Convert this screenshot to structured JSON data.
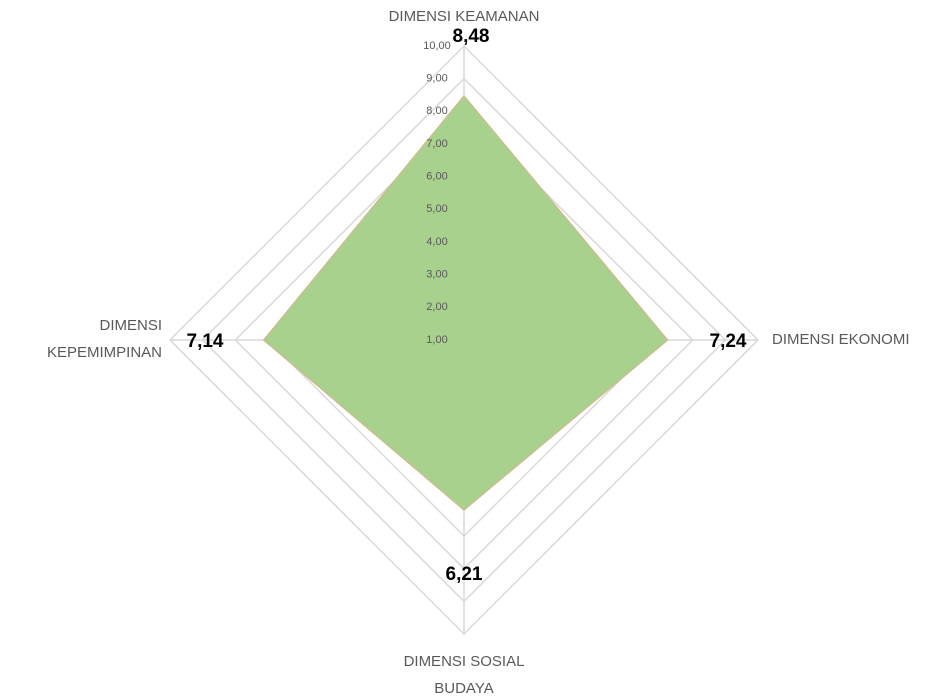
{
  "chart_data": {
    "type": "radar",
    "categories": [
      "DIMENSI KEAMANAN",
      "DIMENSI EKONOMI",
      "DIMENSI SOSIAL BUDAYA",
      "DIMENSI KEPEMIMPINAN"
    ],
    "values": [
      8.48,
      7.24,
      6.21,
      7.14
    ],
    "value_labels": [
      "8,48",
      "7,24",
      "6,21",
      "7,14"
    ],
    "color": "#a9d18e",
    "ylim": [
      1,
      10
    ],
    "yticks": [
      {
        "value": 1,
        "label": "1,00"
      },
      {
        "value": 2,
        "label": "2,00"
      },
      {
        "value": 3,
        "label": "3,00"
      },
      {
        "value": 4,
        "label": "4,00"
      },
      {
        "value": 5,
        "label": "5,00"
      },
      {
        "value": 6,
        "label": "6,00"
      },
      {
        "value": 7,
        "label": "7,00"
      },
      {
        "value": 8,
        "label": "8,00"
      },
      {
        "value": 9,
        "label": "9,00"
      },
      {
        "value": 10,
        "label": "10,00"
      }
    ],
    "grid": true
  }
}
